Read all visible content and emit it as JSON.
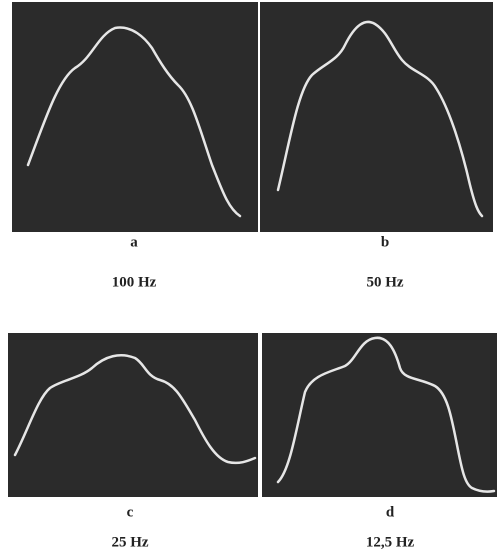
{
  "panels": [
    {
      "letter": "a",
      "caption": "100 Hz"
    },
    {
      "letter": "b",
      "caption": "50 Hz"
    },
    {
      "letter": "c",
      "caption": "25 Hz"
    },
    {
      "letter": "d",
      "caption": "12,5 Hz"
    }
  ]
}
